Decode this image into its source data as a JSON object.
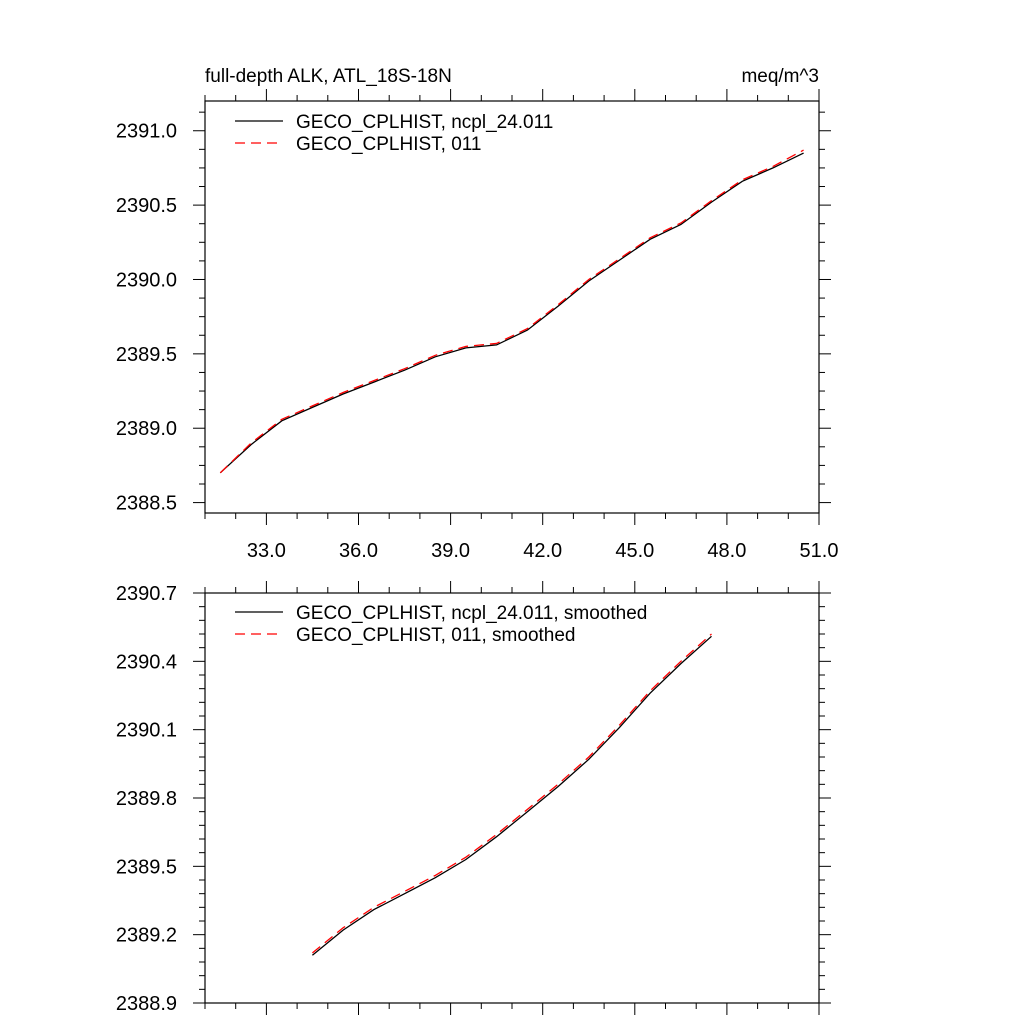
{
  "chart_data": [
    {
      "type": "line",
      "title": "full-depth ALK, ATL_18S-18N",
      "units": "meq/m^3",
      "xlim": [
        31.0,
        51.0
      ],
      "ylim": [
        2388.43,
        2391.2
      ],
      "x_ticks": [
        33.0,
        36.0,
        39.0,
        42.0,
        45.0,
        48.0,
        51.0
      ],
      "x_tick_labels": [
        "33.0",
        "36.0",
        "39.0",
        "42.0",
        "45.0",
        "48.0",
        "51.0"
      ],
      "y_ticks": [
        2388.5,
        2389.0,
        2389.5,
        2390.0,
        2390.5,
        2391.0
      ],
      "y_tick_labels": [
        "2388.5",
        "2389.0",
        "2389.5",
        "2390.0",
        "2390.5",
        "2391.0"
      ],
      "legend_position": "top-left",
      "series": [
        {
          "name": "GECO_CPLHIST, ncpl_24.011",
          "color": "#000000",
          "dash": "solid",
          "x": [
            31.5,
            32.5,
            33.5,
            34.5,
            35.5,
            36.5,
            37.5,
            38.5,
            39.5,
            40.5,
            41.5,
            42.5,
            43.5,
            44.5,
            45.5,
            46.5,
            47.5,
            48.5,
            49.5,
            50.5
          ],
          "y": [
            2388.7,
            2388.89,
            2389.05,
            2389.14,
            2389.23,
            2389.31,
            2389.39,
            2389.48,
            2389.54,
            2389.56,
            2389.66,
            2389.82,
            2389.99,
            2390.13,
            2390.27,
            2390.37,
            2390.52,
            2390.66,
            2390.75,
            2390.85
          ]
        },
        {
          "name": "GECO_CPLHIST, 011",
          "color": "#ff0000",
          "dash": "dashed",
          "x": [
            31.5,
            32.5,
            33.5,
            34.5,
            35.5,
            36.5,
            37.5,
            38.5,
            39.5,
            40.5,
            41.5,
            42.5,
            43.5,
            44.5,
            45.5,
            46.5,
            47.5,
            48.5,
            49.5,
            50.5
          ],
          "y": [
            2388.7,
            2388.9,
            2389.06,
            2389.15,
            2389.24,
            2389.32,
            2389.4,
            2389.49,
            2389.55,
            2389.57,
            2389.67,
            2389.83,
            2390.0,
            2390.14,
            2390.28,
            2390.38,
            2390.53,
            2390.67,
            2390.76,
            2390.87
          ]
        }
      ]
    },
    {
      "type": "line",
      "xlim": [
        31.0,
        51.0
      ],
      "ylim": [
        2388.9,
        2390.7
      ],
      "x_ticks": [
        33.0,
        36.0,
        39.0,
        42.0,
        45.0,
        48.0,
        51.0
      ],
      "y_ticks": [
        2388.9,
        2389.2,
        2389.5,
        2389.8,
        2390.1,
        2390.4,
        2390.7
      ],
      "y_tick_labels": [
        "2388.9",
        "2389.2",
        "2389.5",
        "2389.8",
        "2390.1",
        "2390.4",
        "2390.7"
      ],
      "legend_position": "top-left",
      "series": [
        {
          "name": "GECO_CPLHIST, ncpl_24.011, smoothed",
          "color": "#000000",
          "dash": "solid",
          "x": [
            34.5,
            35.5,
            36.5,
            37.5,
            38.5,
            39.5,
            40.5,
            41.5,
            42.5,
            43.5,
            44.5,
            45.5,
            46.5,
            47.5
          ],
          "y": [
            2389.11,
            2389.22,
            2389.31,
            2389.38,
            2389.45,
            2389.53,
            2389.63,
            2389.74,
            2389.85,
            2389.97,
            2390.11,
            2390.26,
            2390.39,
            2390.51
          ]
        },
        {
          "name": "GECO_CPLHIST, 011, smoothed",
          "color": "#ff0000",
          "dash": "dashed",
          "x": [
            34.5,
            35.5,
            36.5,
            37.5,
            38.5,
            39.5,
            40.5,
            41.5,
            42.5,
            43.5,
            44.5,
            45.5,
            46.5,
            47.5
          ],
          "y": [
            2389.12,
            2389.23,
            2389.32,
            2389.39,
            2389.46,
            2389.54,
            2389.64,
            2389.75,
            2389.86,
            2389.98,
            2390.12,
            2390.27,
            2390.4,
            2390.52
          ]
        }
      ]
    }
  ]
}
